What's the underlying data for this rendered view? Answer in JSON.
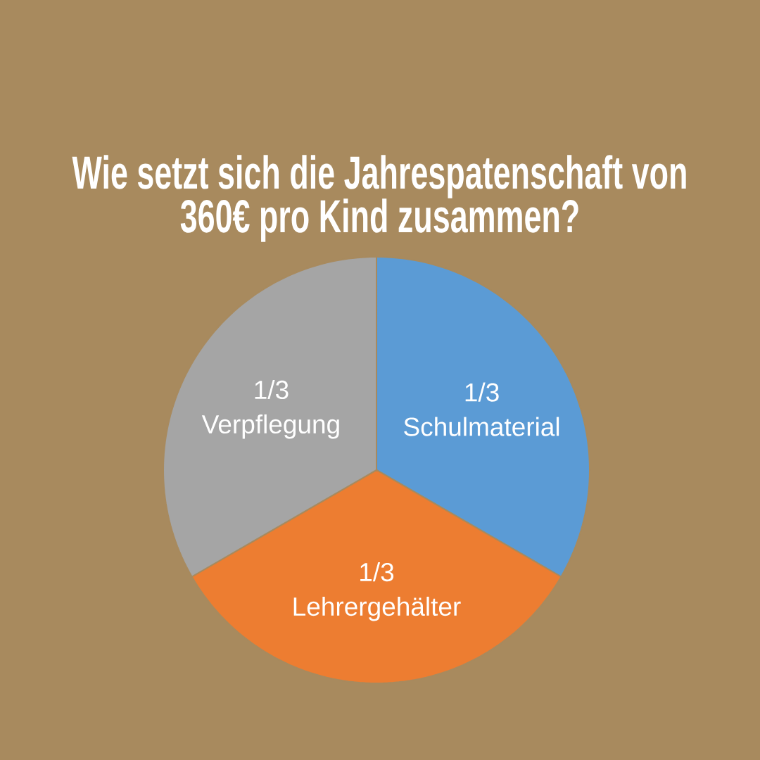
{
  "chart_data": {
    "type": "pie",
    "title": "Wie setzt sich die Jahrespatenschaft von 360€ pro Kind zusammen?",
    "categories": [
      "Schulmaterial",
      "Lehrergehälter",
      "Verpflegung"
    ],
    "values": [
      0.3333,
      0.3333,
      0.3333
    ],
    "colors": [
      "#5b9bd5",
      "#ed7d31",
      "#a5a5a5"
    ],
    "value_labels": [
      "1/3",
      "1/3",
      "1/3"
    ]
  }
}
